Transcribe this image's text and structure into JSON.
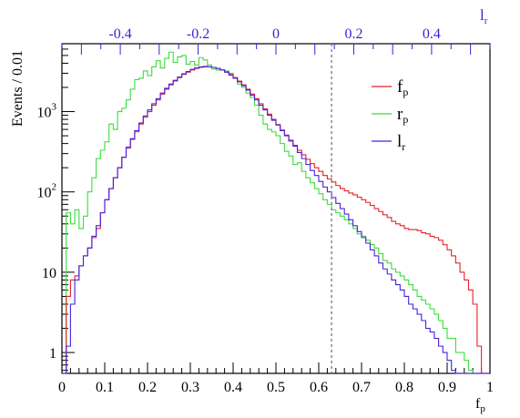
{
  "chart_data": {
    "type": "line",
    "title": "",
    "ylabel": "Events / 0.01",
    "xlabel": "f",
    "xlabel_sub": "p",
    "top_axis_label": "l",
    "top_axis_label_sub": "r",
    "xlim": [
      0,
      1
    ],
    "ylim": [
      0.55,
      7000
    ],
    "yscale": "log",
    "top_axis_range": [
      -0.55,
      0.55
    ],
    "x_ticks": [
      "0",
      "0.1",
      "0.2",
      "0.3",
      "0.4",
      "0.5",
      "0.6",
      "0.7",
      "0.8",
      "0.9",
      "1"
    ],
    "y_ticks": [
      {
        "value": 1,
        "label": "1",
        "sup": ""
      },
      {
        "value": 10,
        "label": "10",
        "sup": ""
      },
      {
        "value": 100,
        "label": "10",
        "sup": "2"
      },
      {
        "value": 1000,
        "label": "10",
        "sup": "3"
      }
    ],
    "top_ticks": [
      {
        "value": -0.4,
        "label": "-0.4"
      },
      {
        "value": -0.2,
        "label": "-0.2"
      },
      {
        "value": 0,
        "label": "0"
      },
      {
        "value": 0.2,
        "label": "0.2"
      },
      {
        "value": 0.4,
        "label": "0.4"
      }
    ],
    "cut_line_x": 0.63,
    "legend_position": "top-right",
    "colors": {
      "f_p": "#e8202a",
      "r_p": "#3cdc3c",
      "l_r": "#4422dd",
      "top_axis": "#3d1fd6",
      "cut_line": "#888888"
    },
    "series": [
      {
        "key": "f_p",
        "name": "f",
        "name_sub": "p",
        "bin_start": 0.0,
        "bin_width": 0.01,
        "values": [
          0.45,
          5,
          8,
          9,
          12,
          16,
          20,
          27,
          35,
          55,
          80,
          110,
          150,
          200,
          270,
          350,
          450,
          560,
          700,
          850,
          1000,
          1200,
          1400,
          1650,
          1900,
          2150,
          2400,
          2650,
          2900,
          3100,
          3300,
          3450,
          3550,
          3600,
          3600,
          3550,
          3450,
          3300,
          3100,
          2900,
          2650,
          2400,
          2150,
          1900,
          1650,
          1450,
          1250,
          1080,
          930,
          800,
          690,
          590,
          510,
          440,
          380,
          330,
          290,
          255,
          225,
          200,
          180,
          160,
          145,
          133,
          120,
          110,
          103,
          97,
          92,
          86,
          80,
          74,
          68,
          62,
          57,
          52,
          48,
          43,
          40,
          38,
          35,
          34,
          34,
          33,
          31,
          30,
          28,
          27,
          25,
          22,
          19,
          16,
          13,
          10,
          8,
          6,
          4,
          1.2,
          0.45,
          0.45
        ]
      },
      {
        "key": "r_p",
        "name": "r",
        "name_sub": "p",
        "bin_start": 0.0,
        "bin_width": 0.01,
        "values": [
          0.5,
          55,
          40,
          60,
          35,
          50,
          100,
          150,
          260,
          330,
          420,
          700,
          600,
          1000,
          1100,
          1400,
          1900,
          2500,
          2600,
          3200,
          2800,
          3600,
          4300,
          3500,
          4600,
          5500,
          4100,
          4800,
          5000,
          3900,
          4200,
          3800,
          4700,
          4400,
          3800,
          3400,
          3300,
          3300,
          3200,
          3000,
          2600,
          2200,
          2000,
          1700,
          1500,
          1200,
          900,
          700,
          600,
          560,
          500,
          400,
          320,
          280,
          220,
          230,
          180,
          150,
          130,
          110,
          95,
          80,
          70,
          60,
          55,
          50,
          45,
          40,
          35,
          30,
          28,
          25,
          22,
          20,
          17,
          14,
          13,
          11,
          10,
          9,
          8,
          7,
          6,
          5,
          4.5,
          4,
          3.5,
          3,
          2.5,
          2,
          1.5,
          1.5,
          1,
          1,
          0.8,
          0.6,
          0.5,
          0.5,
          0.5
        ]
      },
      {
        "key": "l_r",
        "name": "l",
        "name_sub": "r",
        "bin_start": 0.0,
        "bin_width": 0.01,
        "values": [
          0.45,
          1.2,
          4,
          8,
          12,
          16,
          20,
          28,
          38,
          55,
          80,
          110,
          150,
          200,
          270,
          360,
          460,
          580,
          720,
          880,
          1050,
          1250,
          1450,
          1700,
          1950,
          2200,
          2450,
          2700,
          2950,
          3150,
          3350,
          3500,
          3600,
          3650,
          3600,
          3550,
          3450,
          3300,
          3100,
          2850,
          2600,
          2350,
          2100,
          1850,
          1600,
          1400,
          1200,
          1050,
          900,
          780,
          680,
          580,
          500,
          430,
          370,
          310,
          260,
          220,
          185,
          160,
          135,
          115,
          100,
          85,
          72,
          62,
          53,
          45,
          38,
          32,
          27,
          23,
          19,
          16,
          13,
          11,
          9.5,
          8,
          7,
          6,
          5,
          4,
          3.5,
          3,
          2.5,
          2,
          1.8,
          1.5,
          1.2,
          1,
          0.8,
          0.6,
          0.5,
          0.45,
          0.45,
          0.45,
          0.45,
          0.45,
          0.45,
          0.45
        ]
      }
    ]
  }
}
